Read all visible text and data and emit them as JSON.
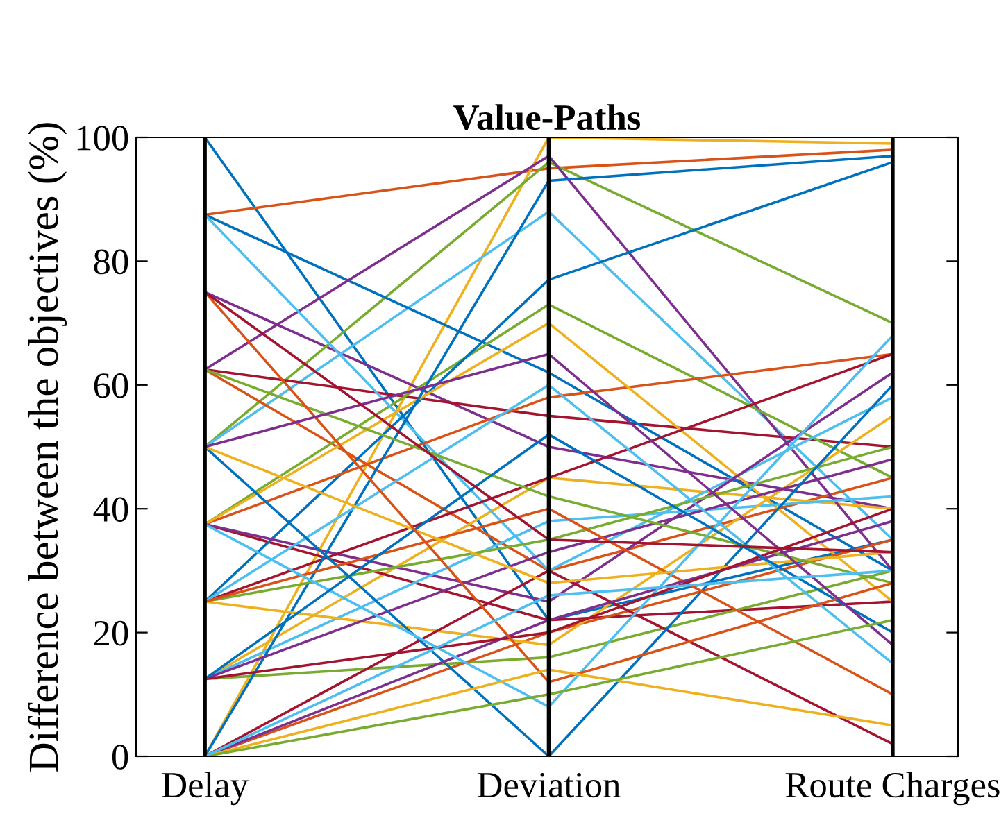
{
  "chart_data": {
    "type": "line",
    "title": "Value-Paths",
    "ylabel": "Difference between the objectives (%)",
    "categories": [
      "Delay",
      "Deviation",
      "Route Charges"
    ],
    "ylim": [
      0,
      100
    ],
    "yticks": [
      0,
      20,
      40,
      60,
      80,
      100
    ],
    "grid": "x",
    "marker": "none",
    "line_style": "solid",
    "series": [
      {
        "color": "#0072bd",
        "values": [
          100,
          22,
          35
        ]
      },
      {
        "color": "#d95319",
        "values": [
          87.5,
          95,
          98
        ]
      },
      {
        "color": "#edb120",
        "values": [
          0,
          100,
          99
        ]
      },
      {
        "color": "#7e2f8e",
        "values": [
          75,
          50,
          40
        ]
      },
      {
        "color": "#77ac30",
        "values": [
          50,
          96,
          70
        ]
      },
      {
        "color": "#4dbeee",
        "values": [
          50,
          88,
          35
        ]
      },
      {
        "color": "#a2142f",
        "values": [
          62.5,
          55,
          50
        ]
      },
      {
        "color": "#0072bd",
        "values": [
          87.5,
          62,
          30
        ]
      },
      {
        "color": "#d95319",
        "values": [
          62.5,
          30,
          45
        ]
      },
      {
        "color": "#edb120",
        "values": [
          12.5,
          45,
          40
        ]
      },
      {
        "color": "#7e2f8e",
        "values": [
          62.5,
          97,
          30
        ]
      },
      {
        "color": "#77ac30",
        "values": [
          37.5,
          73,
          45
        ]
      },
      {
        "color": "#4dbeee",
        "values": [
          87.5,
          30,
          58
        ]
      },
      {
        "color": "#a2142f",
        "values": [
          37.5,
          22,
          25
        ]
      },
      {
        "color": "#0072bd",
        "values": [
          25,
          77,
          96
        ]
      },
      {
        "color": "#d95319",
        "values": [
          37.5,
          58,
          65
        ]
      },
      {
        "color": "#edb120",
        "values": [
          37.5,
          70,
          25
        ]
      },
      {
        "color": "#7e2f8e",
        "values": [
          37.5,
          25,
          62
        ]
      },
      {
        "color": "#77ac30",
        "values": [
          12.5,
          16,
          30
        ]
      },
      {
        "color": "#4dbeee",
        "values": [
          12.5,
          38,
          42
        ]
      },
      {
        "color": "#a2142f",
        "values": [
          25,
          45,
          65
        ]
      },
      {
        "color": "#0072bd",
        "values": [
          0,
          93,
          97
        ]
      },
      {
        "color": "#d95319",
        "values": [
          0,
          20,
          35
        ]
      },
      {
        "color": "#edb120",
        "values": [
          25,
          18,
          55
        ]
      },
      {
        "color": "#7e2f8e",
        "values": [
          12.5,
          33,
          48
        ]
      },
      {
        "color": "#77ac30",
        "values": [
          25,
          35,
          50
        ]
      },
      {
        "color": "#4dbeee",
        "values": [
          25,
          60,
          15
        ]
      },
      {
        "color": "#a2142f",
        "values": [
          0,
          30,
          2
        ]
      },
      {
        "color": "#0072bd",
        "values": [
          50,
          0,
          60
        ]
      },
      {
        "color": "#d95319",
        "values": [
          25,
          40,
          10
        ]
      },
      {
        "color": "#edb120",
        "values": [
          50,
          28,
          33
        ]
      },
      {
        "color": "#7e2f8e",
        "values": [
          0,
          22,
          38
        ]
      },
      {
        "color": "#77ac30",
        "values": [
          62.5,
          42,
          28
        ]
      },
      {
        "color": "#4dbeee",
        "values": [
          37.5,
          8,
          68
        ]
      },
      {
        "color": "#a2142f",
        "values": [
          12.5,
          20,
          40
        ]
      },
      {
        "color": "#0072bd",
        "values": [
          12.5,
          52,
          20
        ]
      },
      {
        "color": "#d95319",
        "values": [
          75,
          12,
          28
        ]
      },
      {
        "color": "#edb120",
        "values": [
          0,
          14,
          5
        ]
      },
      {
        "color": "#7e2f8e",
        "values": [
          50,
          65,
          18
        ]
      },
      {
        "color": "#77ac30",
        "values": [
          0,
          10,
          22
        ]
      },
      {
        "color": "#4dbeee",
        "values": [
          0,
          26,
          30
        ]
      },
      {
        "color": "#a2142f",
        "values": [
          75,
          35,
          33
        ]
      }
    ]
  }
}
